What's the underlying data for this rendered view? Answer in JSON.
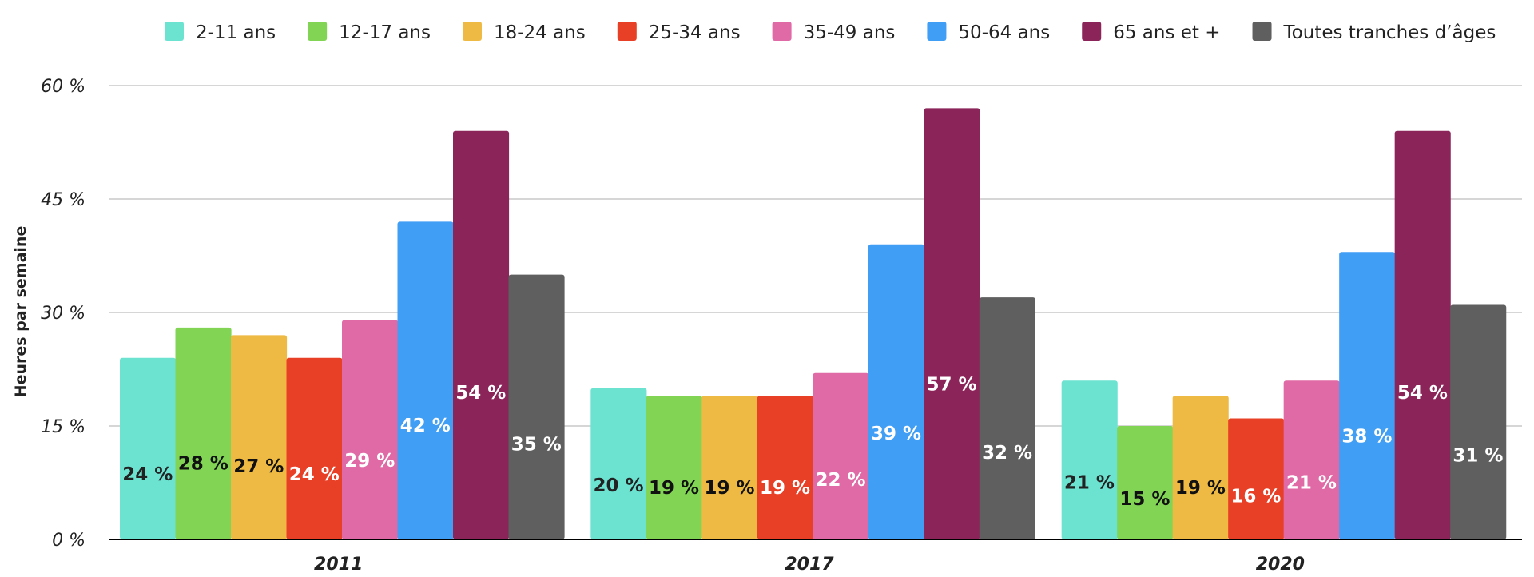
{
  "chart_data": {
    "type": "bar",
    "ylabel": "Heures par semaine",
    "ylim": [
      0,
      60
    ],
    "yticks": [
      0,
      15,
      30,
      45,
      60
    ],
    "ytick_labels": [
      "0 %",
      "15 %",
      "30 %",
      "45 %",
      "60 %"
    ],
    "grid": true,
    "legend_position": "top",
    "categories": [
      "2011",
      "2017",
      "2020"
    ],
    "series": [
      {
        "name": "2-11 ans",
        "color": "#6CE3D1",
        "label_color": "#222222",
        "values": [
          24,
          20,
          21
        ],
        "labels": [
          "24 %",
          "20 %",
          "21 %"
        ]
      },
      {
        "name": "12-17 ans",
        "color": "#82D455",
        "label_color": "#111111",
        "values": [
          28,
          19,
          15
        ],
        "labels": [
          "28 %",
          "19 %",
          "15 %"
        ]
      },
      {
        "name": "18-24 ans",
        "color": "#EFBA43",
        "label_color": "#111111",
        "values": [
          27,
          19,
          19
        ],
        "labels": [
          "27 %",
          "19 %",
          "19 %"
        ]
      },
      {
        "name": "25-34 ans",
        "color": "#E84026",
        "label_color": "#ffffff",
        "values": [
          24,
          19,
          16
        ],
        "labels": [
          "24 %",
          "19 %",
          "16 %"
        ]
      },
      {
        "name": "35-49 ans",
        "color": "#E06AA6",
        "label_color": "#ffffff",
        "values": [
          29,
          22,
          21
        ],
        "labels": [
          "29 %",
          "22 %",
          "21 %"
        ]
      },
      {
        "name": "50-64 ans",
        "color": "#419EF5",
        "label_color": "#ffffff",
        "values": [
          42,
          39,
          38
        ],
        "labels": [
          "42 %",
          "39 %",
          "38 %"
        ]
      },
      {
        "name": "65 ans et +",
        "color": "#8B2559",
        "label_color": "#ffffff",
        "values": [
          54,
          57,
          54
        ],
        "labels": [
          "54 %",
          "57 %",
          "54 %"
        ]
      },
      {
        "name": "Toutes tranches d’âges",
        "color": "#5F5F5F",
        "label_color": "#ffffff",
        "values": [
          35,
          32,
          31
        ],
        "labels": [
          "35 %",
          "32 %",
          "31 %"
        ]
      }
    ]
  }
}
